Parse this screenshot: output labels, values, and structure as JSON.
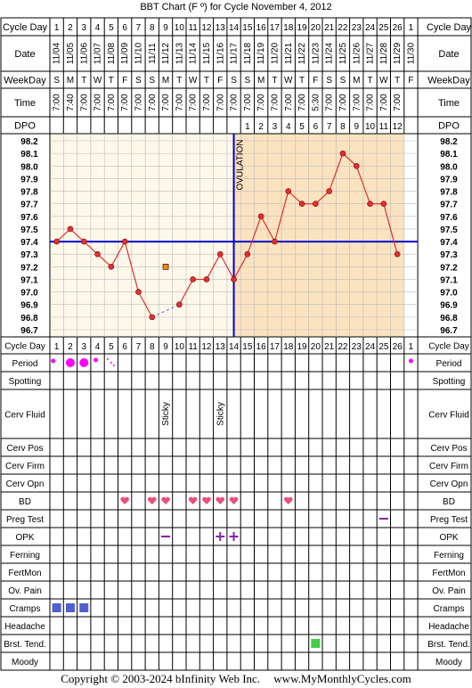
{
  "title": "BBT Chart (F º) for Cycle November 4, 2012",
  "footer": {
    "copyright": "Copyright © 2003-2024 bInfinity Web Inc.",
    "site": "www.MyMonthlyCycles.com"
  },
  "row_labels": {
    "cycle_day": "Cycle Day",
    "date": "Date",
    "weekday": "WeekDay",
    "time": "Time",
    "dpo": "DPO",
    "period": "Period",
    "spotting": "Spotting",
    "cerv_fluid": "Cerv Fluid",
    "cerv_pos": "Cerv Pos",
    "cerv_firm": "Cerv Firm",
    "cerv_opn": "Cerv Opn",
    "bd": "BD",
    "preg_test": "Preg Test",
    "opk": "OPK",
    "ferning": "Ferning",
    "fertmon": "FertMon",
    "ov_pain": "Ov. Pain",
    "cramps": "Cramps",
    "headache": "Headache",
    "brst_tend": "Brst. Tend.",
    "moody": "Moody"
  },
  "ovulation_label": "OVULATION",
  "colors": {
    "line": "#e03030",
    "coverline": "#0000cc",
    "luteal_bg": "#fbe3c0",
    "follicular_bg": "#fdf8ea",
    "period": "#ff00ff",
    "heart": "#e8507a",
    "cramps": "#5060d0",
    "brst": "#44cc44",
    "opk": "#8822aa",
    "marker_orange": "#ff8800"
  },
  "chart_data": {
    "type": "line",
    "cycle_days": [
      "1",
      "2",
      "3",
      "4",
      "5",
      "6",
      "7",
      "8",
      "9",
      "10",
      "11",
      "12",
      "13",
      "14",
      "15",
      "16",
      "17",
      "18",
      "19",
      "20",
      "21",
      "22",
      "23",
      "24",
      "25",
      "26",
      "1"
    ],
    "dates": [
      "11/04",
      "11/05",
      "11/06",
      "11/07",
      "11/08",
      "11/09",
      "11/10",
      "11/11",
      "11/12",
      "11/13",
      "11/14",
      "11/15",
      "11/16",
      "11/17",
      "11/18",
      "11/19",
      "11/20",
      "11/21",
      "11/22",
      "11/23",
      "11/24",
      "11/25",
      "11/26",
      "11/27",
      "11/28",
      "11/29",
      "11/30"
    ],
    "weekdays": [
      "S",
      "M",
      "T",
      "W",
      "T",
      "F",
      "S",
      "S",
      "M",
      "T",
      "W",
      "T",
      "F",
      "S",
      "S",
      "M",
      "T",
      "W",
      "T",
      "F",
      "S",
      "S",
      "M",
      "T",
      "W",
      "T",
      "F"
    ],
    "times": [
      "7:00",
      "7:40",
      "7:00",
      "7:00",
      "7:00",
      "7:00",
      "7:00",
      "7:00",
      "7:00",
      "7:00",
      "7:00",
      "7:00",
      "7:00",
      "7:00",
      "7:00",
      "7:00",
      "7:00",
      "7:00",
      "7:00",
      "5:30",
      "7:00",
      "7:00",
      "7:00",
      "7:00",
      "7:00",
      "7:00",
      ""
    ],
    "dpo": [
      "",
      "",
      "",
      "",
      "",
      "",
      "",
      "",
      "",
      "",
      "",
      "",
      "",
      "",
      "1",
      "2",
      "3",
      "4",
      "5",
      "6",
      "7",
      "8",
      "9",
      "10",
      "11",
      "12",
      ""
    ],
    "temps": [
      97.4,
      97.5,
      97.4,
      97.3,
      97.2,
      97.4,
      97.0,
      96.8,
      null,
      96.9,
      97.1,
      97.1,
      97.3,
      97.1,
      97.3,
      97.6,
      97.4,
      97.8,
      97.7,
      97.7,
      97.8,
      98.1,
      98.0,
      97.7,
      97.7,
      97.3,
      null
    ],
    "discarded_temps": [
      {
        "day_index": 8,
        "value": 97.2
      }
    ],
    "y_ticks": [
      "98.2",
      "98.1",
      "98.0",
      "97.9",
      "97.8",
      "97.7",
      "97.6",
      "97.5",
      "97.4",
      "97.3",
      "97.2",
      "97.1",
      "97.0",
      "96.9",
      "96.8",
      "96.7"
    ],
    "ylim": [
      96.7,
      98.2
    ],
    "coverline": 97.4,
    "ovulation_after_day_index": 13,
    "period": [
      "heavy-dot-small",
      "heavy",
      "heavy",
      "light",
      "spotting",
      "",
      "",
      "",
      "",
      "",
      "",
      "",
      "",
      "",
      "",
      "",
      "",
      "",
      "",
      "",
      "",
      "",
      "",
      "",
      "",
      "",
      "dot"
    ],
    "cerv_fluid": [
      "",
      "",
      "",
      "",
      "",
      "",
      "",
      "",
      "Sticky",
      "",
      "",
      "",
      "Sticky",
      "",
      "",
      "",
      "",
      "",
      "",
      "",
      "",
      "",
      "",
      "",
      "",
      "",
      ""
    ],
    "bd": [
      false,
      false,
      false,
      false,
      false,
      true,
      false,
      true,
      true,
      false,
      true,
      true,
      true,
      true,
      false,
      false,
      false,
      true,
      false,
      false,
      false,
      false,
      false,
      false,
      false,
      false,
      false
    ],
    "preg_test": [
      "",
      "",
      "",
      "",
      "",
      "",
      "",
      "",
      "",
      "",
      "",
      "",
      "",
      "",
      "",
      "",
      "",
      "",
      "",
      "",
      "",
      "",
      "",
      "",
      "neg",
      "",
      ""
    ],
    "opk": [
      "",
      "",
      "",
      "",
      "",
      "",
      "",
      "",
      "neg",
      "",
      "",
      "",
      "pos",
      "pos",
      "",
      "",
      "",
      "",
      "",
      "",
      "",
      "",
      "",
      "",
      "",
      "",
      ""
    ],
    "cramps": [
      true,
      true,
      true,
      false,
      false,
      false,
      false,
      false,
      false,
      false,
      false,
      false,
      false,
      false,
      false,
      false,
      false,
      false,
      false,
      false,
      false,
      false,
      false,
      false,
      false,
      false,
      false
    ],
    "brst_tend": [
      false,
      false,
      false,
      false,
      false,
      false,
      false,
      false,
      false,
      false,
      false,
      false,
      false,
      false,
      false,
      false,
      false,
      false,
      false,
      true,
      false,
      false,
      false,
      false,
      false,
      false,
      false
    ]
  }
}
